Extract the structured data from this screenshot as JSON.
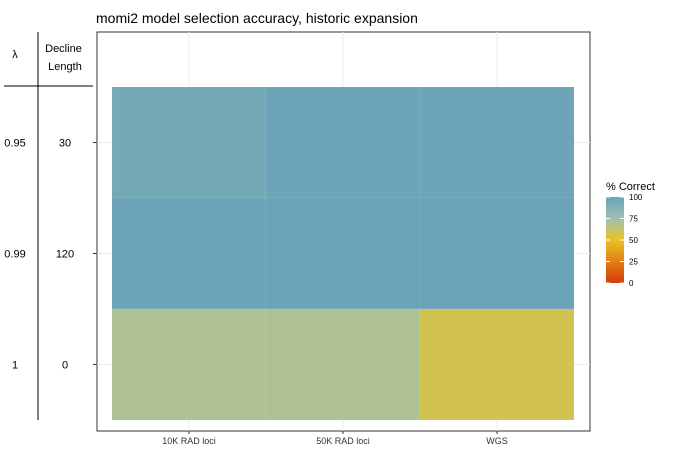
{
  "chart_data": {
    "type": "heatmap",
    "title": "momi2 model selection accuracy, historic expansion",
    "xlabel": "",
    "ylabel": "",
    "x_categories": [
      "10K RAD loci",
      "50K RAD loci",
      "WGS"
    ],
    "row_headers": {
      "lambda": "λ",
      "decline_length": "Decline Length"
    },
    "rows": [
      {
        "lambda": "0.95",
        "decline_length": "30",
        "values": [
          95,
          99,
          99
        ]
      },
      {
        "lambda": "0.99",
        "decline_length": "120",
        "values": [
          100,
          100,
          100
        ]
      },
      {
        "lambda": "1",
        "decline_length": "0",
        "values": [
          70,
          70,
          58
        ]
      }
    ],
    "legend": {
      "title": "% Correct",
      "placement": "right",
      "ticks": [
        100,
        75,
        50,
        25,
        0
      ],
      "range": [
        0,
        100
      ],
      "color_stops": [
        {
          "value": 0,
          "color": "#d83a0a"
        },
        {
          "value": 50,
          "color": "#e8c325"
        },
        {
          "value": 75,
          "color": "#9fc0b0"
        },
        {
          "value": 100,
          "color": "#6ba3b8"
        }
      ]
    },
    "grid": true
  }
}
